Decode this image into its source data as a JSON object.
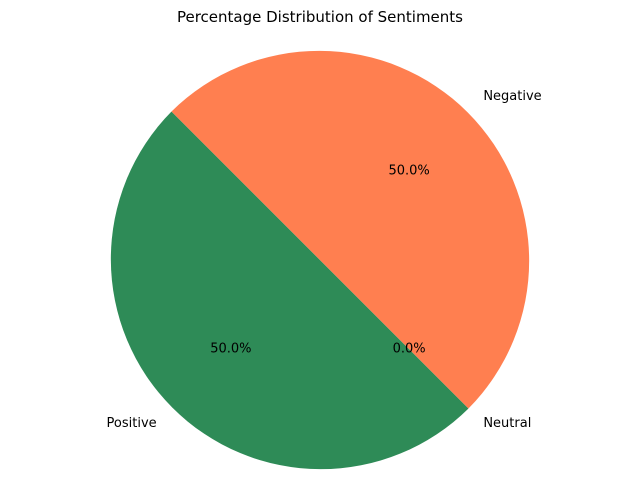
{
  "chart_data": {
    "type": "pie",
    "title": "Percentage Distribution of Sentiments",
    "categories": [
      "Positive",
      "Neutral",
      "Negative"
    ],
    "values": [
      50.0,
      0.0,
      50.0
    ],
    "percent_labels": [
      "50.0%",
      "0.0%",
      "50.0%"
    ],
    "colors": [
      "#2e8b57",
      "#66b3ff",
      "#ff7f50"
    ],
    "start_angle_deg": 135,
    "direction": "counterclockwise",
    "legend": "none"
  }
}
